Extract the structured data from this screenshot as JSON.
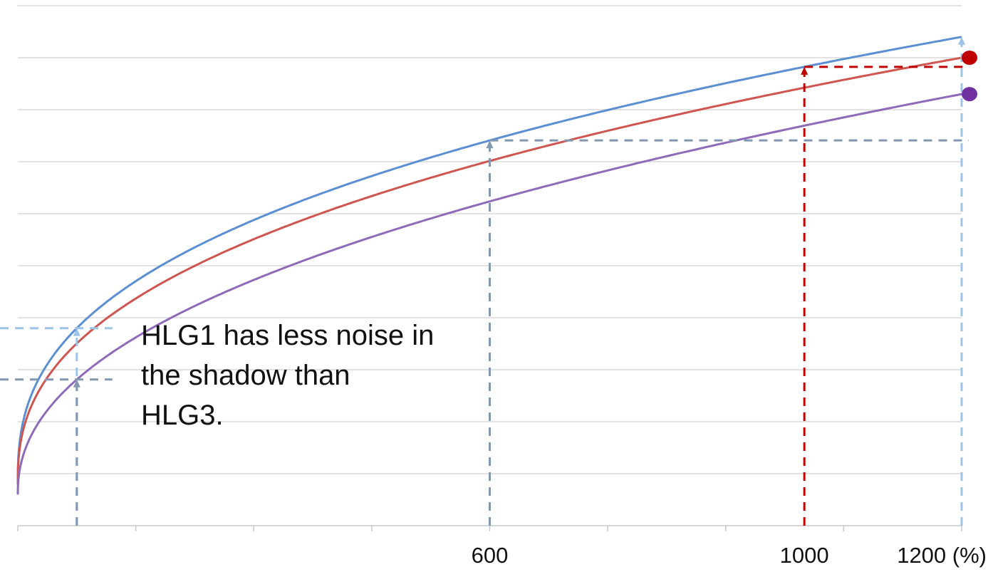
{
  "chart_data": {
    "type": "line",
    "title": "",
    "xlabel": "",
    "ylabel": "",
    "xlim": [
      0,
      1200
    ],
    "ylim": [
      0,
      1
    ],
    "x_ticks_labeled": [
      {
        "value": 600,
        "label": "600"
      },
      {
        "value": 1000,
        "label": "1000"
      },
      {
        "value": 1200,
        "label": "1200 (%)"
      }
    ],
    "x_minor_ticks": [
      0,
      150,
      300,
      450,
      600,
      750,
      900,
      1050,
      1200
    ],
    "grid": "horizontal",
    "series": [
      {
        "id": "blue",
        "color": "#5b8fd2",
        "curve_exponent": 0.38,
        "x": [
          0,
          75,
          600,
          1200
        ],
        "y": [
          0.08,
          0.48,
          0.83,
          0.94
        ]
      },
      {
        "id": "red",
        "color": "#cf5550",
        "curve_exponent": 0.4,
        "x": [
          0,
          1200
        ],
        "y": [
          0.08,
          0.9
        ]
      },
      {
        "id": "purple",
        "color": "#8e6bb8",
        "curve_exponent": 0.45,
        "x": [
          0,
          75,
          1200
        ],
        "y": [
          0.06,
          0.34,
          0.83
        ]
      }
    ],
    "guides": [
      {
        "series": "blue",
        "at_x": 75,
        "color": "#9dc3e6"
      },
      {
        "series": "purple",
        "at_x": 75,
        "color": "#8497b0"
      },
      {
        "series": "blue",
        "at_x": 600,
        "color": "#8497b0"
      },
      {
        "series": "blue",
        "at_x": 1000,
        "color": "#c00000"
      },
      {
        "series": "blue",
        "at_x": 1200,
        "color": "#9dc3e6"
      }
    ],
    "end_markers": [
      {
        "series": "red",
        "color": "#c00000"
      },
      {
        "series": "purple",
        "color": "#7030a0"
      }
    ],
    "annotation": [
      "HLG1 has less noise in",
      "the shadow than",
      "HLG3."
    ]
  }
}
